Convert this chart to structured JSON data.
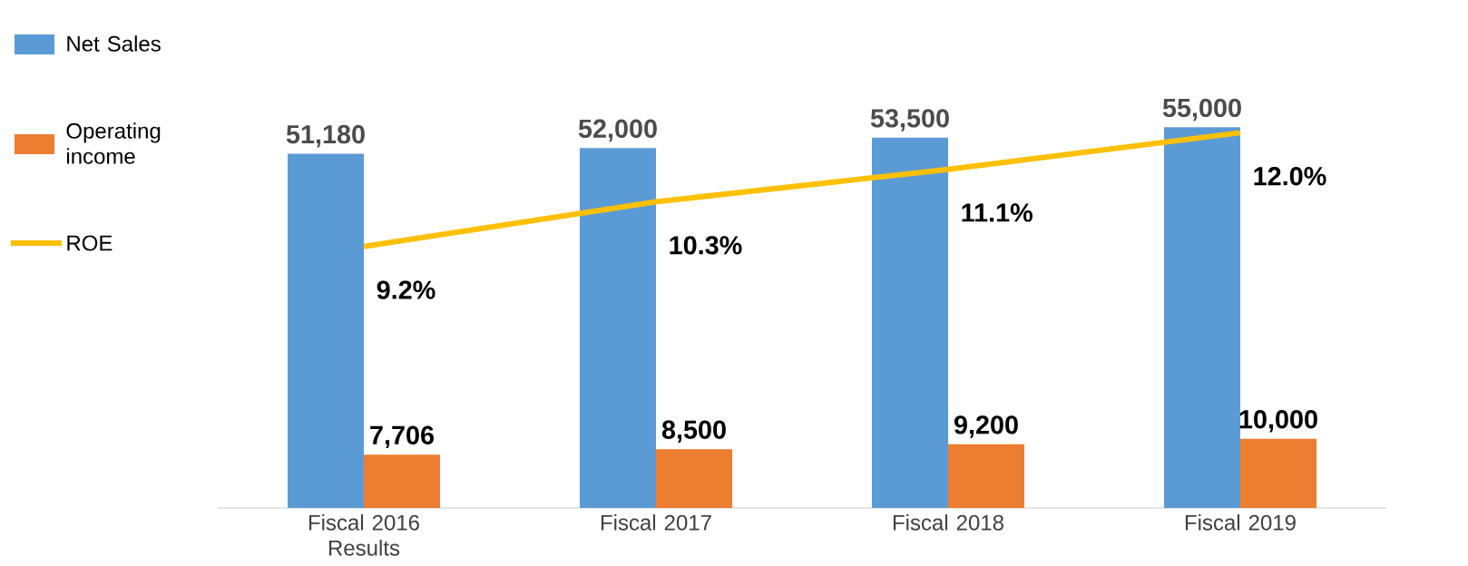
{
  "chart_data": {
    "type": "bar",
    "categories": [
      "Fiscal 2016 Results",
      "Fiscal 2017",
      "Fiscal 2018",
      "Fiscal 2019"
    ],
    "legend": "left",
    "series": [
      {
        "name": "Net Sales",
        "color": "#5b9bd5",
        "values": [
          51180,
          52000,
          53500,
          55000
        ],
        "value_labels": [
          "51,180",
          "52,000",
          "53,500",
          "55,000"
        ]
      },
      {
        "name": "Operating income",
        "color": "#ed7d31",
        "values": [
          7706,
          8500,
          9200,
          10000
        ],
        "value_labels": [
          "7,706",
          "8,500",
          "9,200",
          "10,000"
        ]
      },
      {
        "name": "ROE",
        "type": "line",
        "axis": "y2",
        "color": "#ffc000",
        "values": [
          9.2,
          10.3,
          11.1,
          12.0
        ],
        "value_labels": [
          "9.2%",
          "10.3%",
          "11.1%",
          "12.0%"
        ]
      }
    ]
  }
}
